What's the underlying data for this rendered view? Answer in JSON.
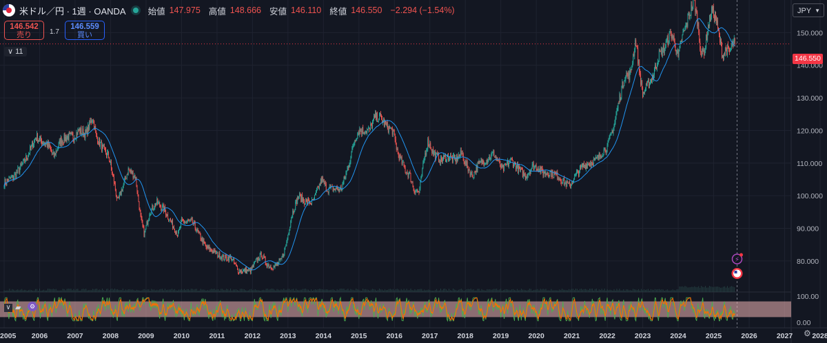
{
  "header": {
    "title": "米ドル／円 · 1週 · OANDA",
    "open_label": "始値",
    "open_value": "147.975",
    "high_label": "高値",
    "high_value": "148.666",
    "low_label": "安値",
    "low_value": "146.110",
    "close_label": "終値",
    "close_value": "146.550",
    "change": "−2.294 (−1.54%)"
  },
  "trade": {
    "sell_price": "146.542",
    "sell_label": "売り",
    "buy_price": "146.559",
    "buy_label": "買い",
    "spread": "1.7"
  },
  "collapse_label": "∨ 11",
  "currency_button": "JPY",
  "last_price_tag": "146.550",
  "colors": {
    "background": "#131722",
    "up": "#26a69a",
    "down": "#ef5350",
    "ma": "#2196f3",
    "grid": "#1f2330",
    "rsi_green": "#4caf50",
    "rsi_orange": "#ff6d00",
    "rsi_band": "#f0b4b4"
  },
  "chart_data": [
    {
      "type": "candlestick",
      "title": "米ドル／円 1週",
      "xlabel": "",
      "ylabel": "JPY",
      "ylim": [
        73,
        160
      ],
      "yticks": [
        "150.000",
        "140.000",
        "130.000",
        "120.000",
        "110.000",
        "100.000",
        "90.000",
        "80.000"
      ],
      "x_ticks": [
        "2005",
        "2006",
        "2007",
        "2008",
        "2009",
        "2010",
        "2011",
        "2012",
        "2013",
        "2014",
        "2015",
        "2016",
        "2017",
        "2018",
        "2019",
        "2020",
        "2021",
        "2022",
        "2023",
        "2024",
        "2025",
        "2026",
        "2027",
        "2028"
      ],
      "anchors": [
        [
          2005.0,
          104
        ],
        [
          2005.3,
          106
        ],
        [
          2005.6,
          111
        ],
        [
          2005.9,
          118
        ],
        [
          2006.0,
          117
        ],
        [
          2006.2,
          116
        ],
        [
          2006.4,
          112
        ],
        [
          2006.6,
          117
        ],
        [
          2006.8,
          118
        ],
        [
          2006.95,
          118
        ],
        [
          2007.1,
          120
        ],
        [
          2007.3,
          119
        ],
        [
          2007.5,
          124
        ],
        [
          2007.6,
          118
        ],
        [
          2007.8,
          114
        ],
        [
          2007.95,
          112
        ],
        [
          2008.1,
          104
        ],
        [
          2008.2,
          98
        ],
        [
          2008.35,
          103
        ],
        [
          2008.5,
          108
        ],
        [
          2008.7,
          106
        ],
        [
          2008.85,
          93
        ],
        [
          2008.95,
          88
        ],
        [
          2009.1,
          95
        ],
        [
          2009.3,
          98
        ],
        [
          2009.5,
          96
        ],
        [
          2009.7,
          92
        ],
        [
          2009.9,
          88
        ],
        [
          2010.0,
          92
        ],
        [
          2010.3,
          92
        ],
        [
          2010.5,
          88
        ],
        [
          2010.7,
          84
        ],
        [
          2010.9,
          83
        ],
        [
          2011.0,
          82
        ],
        [
          2011.2,
          81
        ],
        [
          2011.4,
          81
        ],
        [
          2011.6,
          77
        ],
        [
          2011.8,
          77
        ],
        [
          2011.95,
          77
        ],
        [
          2012.1,
          80
        ],
        [
          2012.25,
          82
        ],
        [
          2012.4,
          79
        ],
        [
          2012.6,
          78
        ],
        [
          2012.8,
          80
        ],
        [
          2012.95,
          85
        ],
        [
          2013.1,
          94
        ],
        [
          2013.3,
          100
        ],
        [
          2013.5,
          98
        ],
        [
          2013.7,
          98
        ],
        [
          2013.95,
          105
        ],
        [
          2014.1,
          102
        ],
        [
          2014.3,
          102
        ],
        [
          2014.5,
          102
        ],
        [
          2014.7,
          109
        ],
        [
          2014.9,
          118
        ],
        [
          2015.0,
          120
        ],
        [
          2015.3,
          120
        ],
        [
          2015.45,
          124
        ],
        [
          2015.6,
          124
        ],
        [
          2015.8,
          121
        ],
        [
          2015.95,
          120
        ],
        [
          2016.1,
          113
        ],
        [
          2016.3,
          108
        ],
        [
          2016.45,
          106
        ],
        [
          2016.55,
          102
        ],
        [
          2016.7,
          101
        ],
        [
          2016.85,
          112
        ],
        [
          2016.95,
          117
        ],
        [
          2017.1,
          113
        ],
        [
          2017.3,
          111
        ],
        [
          2017.5,
          112
        ],
        [
          2017.7,
          111
        ],
        [
          2017.9,
          113
        ],
        [
          2018.0,
          110
        ],
        [
          2018.2,
          106
        ],
        [
          2018.4,
          110
        ],
        [
          2018.6,
          111
        ],
        [
          2018.8,
          113
        ],
        [
          2018.95,
          110
        ],
        [
          2019.05,
          108
        ],
        [
          2019.3,
          111
        ],
        [
          2019.5,
          108
        ],
        [
          2019.7,
          106
        ],
        [
          2019.9,
          109
        ],
        [
          2020.0,
          109
        ],
        [
          2020.2,
          107
        ],
        [
          2020.4,
          107
        ],
        [
          2020.6,
          106
        ],
        [
          2020.8,
          104
        ],
        [
          2020.95,
          103
        ],
        [
          2021.1,
          106
        ],
        [
          2021.3,
          109
        ],
        [
          2021.5,
          110
        ],
        [
          2021.7,
          111
        ],
        [
          2021.9,
          114
        ],
        [
          2022.0,
          115
        ],
        [
          2022.2,
          122
        ],
        [
          2022.35,
          130
        ],
        [
          2022.5,
          137
        ],
        [
          2022.65,
          137
        ],
        [
          2022.8,
          148
        ],
        [
          2022.9,
          139
        ],
        [
          2023.0,
          131
        ],
        [
          2023.1,
          133
        ],
        [
          2023.3,
          137
        ],
        [
          2023.45,
          143
        ],
        [
          2023.6,
          145
        ],
        [
          2023.8,
          150
        ],
        [
          2023.9,
          147
        ],
        [
          2024.0,
          142
        ],
        [
          2024.1,
          148
        ],
        [
          2024.3,
          155
        ],
        [
          2024.45,
          160
        ],
        [
          2024.55,
          153
        ],
        [
          2024.65,
          143
        ],
        [
          2024.75,
          145
        ],
        [
          2024.85,
          152
        ],
        [
          2024.95,
          157
        ],
        [
          2025.05,
          155
        ],
        [
          2025.15,
          149
        ],
        [
          2025.25,
          143
        ],
        [
          2025.35,
          145
        ],
        [
          2025.45,
          144
        ],
        [
          2025.55,
          147
        ],
        [
          2025.6,
          146.55
        ]
      ],
      "overlay": {
        "type": "line",
        "name": "moving average",
        "color": "#2196f3"
      },
      "markers": [
        "lightning-event",
        "us-flag-event"
      ],
      "last_price": 146.55
    },
    {
      "type": "line",
      "title": "oscillator",
      "ylim": [
        0,
        100
      ],
      "yticks": [
        "100.00",
        "0.00"
      ],
      "band": [
        20,
        80
      ],
      "series": [
        {
          "name": "fast",
          "color": "#4caf50"
        },
        {
          "name": "slow",
          "color": "#ff6d00"
        }
      ]
    }
  ]
}
